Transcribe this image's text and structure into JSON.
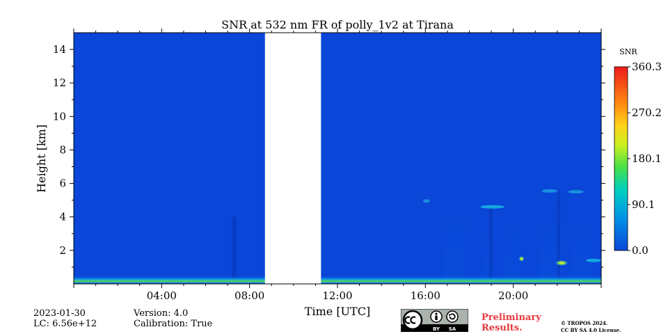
{
  "chart_data": {
    "type": "heatmap",
    "title": "SNR at 532 nm FR of polly_1v2 at Tirana",
    "xlabel": "Time [UTC]",
    "ylabel": "Height [km]",
    "xlim_hours": [
      0,
      24
    ],
    "ylim_km": [
      0,
      15
    ],
    "x_ticks": [
      {
        "hour": 4,
        "label": "04:00"
      },
      {
        "hour": 8,
        "label": "08:00"
      },
      {
        "hour": 12,
        "label": "12:00"
      },
      {
        "hour": 16,
        "label": "16:00"
      },
      {
        "hour": 20,
        "label": "20:00"
      }
    ],
    "y_ticks": [
      2,
      4,
      6,
      8,
      10,
      12,
      14
    ],
    "no_data_gap_hours": [
      8.7,
      11.25
    ],
    "colorbar": {
      "label": "SNR",
      "min": 0.0,
      "max": 360.3,
      "tick_labels": [
        "0.0",
        "90.1",
        "180.1",
        "270.2",
        "360.3"
      ]
    },
    "features": [
      {
        "name": "near-surface layer",
        "start_h": 0,
        "end_h": 24,
        "bottom_km": 0,
        "top_km": 0.5,
        "snr": 150
      },
      {
        "name": "cloud",
        "start_h": 15.9,
        "end_h": 16.2,
        "height_km": 4.95,
        "snr": 70
      },
      {
        "name": "cloud",
        "start_h": 18.5,
        "end_h": 19.6,
        "height_km": 4.6,
        "snr": 80
      },
      {
        "name": "cloud",
        "start_h": 21.3,
        "end_h": 22.0,
        "height_km": 5.55,
        "snr": 60
      },
      {
        "name": "cloud",
        "start_h": 22.5,
        "end_h": 23.2,
        "height_km": 5.5,
        "snr": 55
      },
      {
        "name": "cloud",
        "start_h": 20.25,
        "end_h": 20.5,
        "height_km": 1.5,
        "snr": 230
      },
      {
        "name": "cloud",
        "start_h": 21.9,
        "end_h": 22.5,
        "height_km": 1.25,
        "snr": 240
      },
      {
        "name": "cloud",
        "start_h": 23.3,
        "end_h": 24,
        "height_km": 1.4,
        "snr": 150
      }
    ]
  },
  "meta": {
    "date": "2023-01-30",
    "lc": "LC: 6.56e+12",
    "version": "Version: 4.0",
    "calibration": "Calibration: True"
  },
  "notice": {
    "preliminary_line1": "Preliminary",
    "preliminary_line2": "Results.",
    "copyright_line1": "© TROPOS 2024.",
    "copyright_line2": "CC BY SA 4.0 License."
  }
}
